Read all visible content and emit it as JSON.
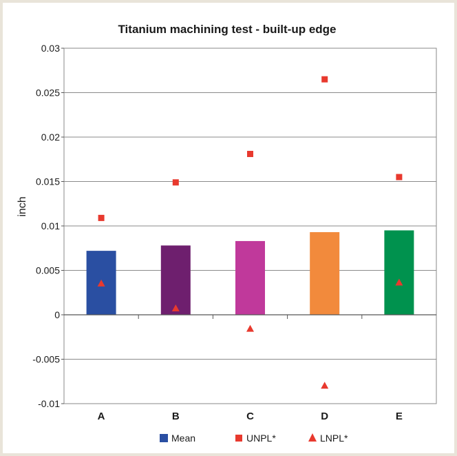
{
  "chart_data": {
    "type": "bar",
    "title": "Titanium machining test - built-up edge",
    "ylabel": "inch",
    "xlabel": "",
    "categories": [
      "A",
      "B",
      "C",
      "D",
      "E"
    ],
    "ylim": [
      -0.01,
      0.03
    ],
    "yticks": [
      0.03,
      0.025,
      0.02,
      0.015,
      0.01,
      0.005,
      0,
      -0.005,
      -0.01
    ],
    "ytick_labels": [
      "0.03",
      "0.025",
      "0.02",
      "0.015",
      "0.01",
      "0.005",
      "0",
      "-0.005",
      "-0.01"
    ],
    "grid": true,
    "legend_position": "bottom",
    "series": [
      {
        "name": "Mean",
        "kind": "bar",
        "values": [
          0.0072,
          0.0078,
          0.0083,
          0.0093,
          0.0095
        ],
        "legend_color": "#2a4fa2",
        "colors": [
          "#2a4fa2",
          "#6e1f6e",
          "#c0399b",
          "#f28a3c",
          "#00924e"
        ]
      },
      {
        "name": "UNPL*",
        "kind": "marker",
        "marker": "square",
        "values": [
          0.0109,
          0.0149,
          0.0181,
          0.0265,
          0.0155
        ],
        "color": "#e8392e"
      },
      {
        "name": "LNPL*",
        "kind": "marker",
        "marker": "triangle",
        "values": [
          0.0035,
          0.0007,
          -0.0016,
          -0.008,
          0.0036
        ],
        "color": "#e8392e"
      }
    ]
  }
}
